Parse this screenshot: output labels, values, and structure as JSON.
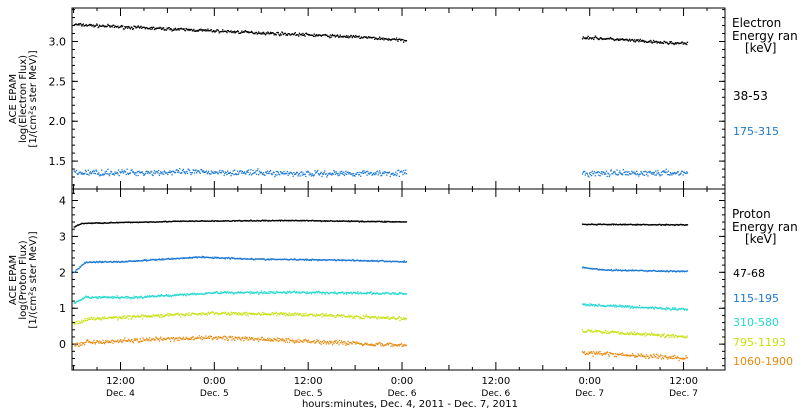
{
  "footer_label": "hours:minutes, Dec.  4, 2011 - Dec.  7, 2011",
  "x_ticks": [
    {
      "time": "12:00",
      "day": "Dec. 4",
      "h": 12
    },
    {
      "time": "0:00",
      "day": "Dec. 5",
      "h": 24
    },
    {
      "time": "12:00",
      "day": "Dec. 5",
      "h": 36
    },
    {
      "time": "0:00",
      "day": "Dec. 6",
      "h": 48
    },
    {
      "time": "12:00",
      "day": "Dec. 6",
      "h": 60
    },
    {
      "time": "0:00",
      "day": "Dec. 7",
      "h": 72
    },
    {
      "time": "12:00",
      "day": "Dec. 7",
      "h": 84
    }
  ],
  "colors": {
    "black": "#000000",
    "blue": "#1a78d2",
    "cyan": "#22d8d0",
    "yellow": "#c8e010",
    "orange": "#e88a10"
  },
  "chart_data": [
    {
      "type": "scatter",
      "panel": "top",
      "ylabel_lines": [
        "ACE EPAM",
        "log(Electron Flux)",
        "[1/(cm²s ster MeV)]"
      ],
      "ylim": [
        1.15,
        3.42
      ],
      "yticks": [
        1.5,
        2.0,
        2.5,
        3.0
      ],
      "ytick_labels": [
        "1.5",
        "2.0",
        "2.5",
        "3.0"
      ],
      "xlim": [
        5.8,
        89.3
      ],
      "legend": {
        "title_lines": [
          "Electron",
          "Energy ran",
          "[keV]"
        ],
        "entries": [
          "38-53",
          "175-315"
        ]
      },
      "series": [
        {
          "name": "38-53",
          "color": "#000000",
          "noise": 0.028,
          "segments": [
            {
              "x": [
                6,
                12,
                24,
                36,
                43,
                48.5
              ],
              "y": [
                3.22,
                3.19,
                3.14,
                3.09,
                3.06,
                3.02
              ]
            },
            {
              "x": [
                71,
                76,
                80,
                84.5
              ],
              "y": [
                3.06,
                3.03,
                3.0,
                2.98
              ]
            }
          ]
        },
        {
          "name": "175-315",
          "color": "#1a78d2",
          "noise": 0.055,
          "segments": [
            {
              "x": [
                6,
                24,
                36,
                48.5
              ],
              "y": [
                1.36,
                1.37,
                1.35,
                1.36
              ]
            },
            {
              "x": [
                71,
                84.5
              ],
              "y": [
                1.35,
                1.36
              ]
            }
          ]
        }
      ]
    },
    {
      "type": "scatter",
      "panel": "bottom",
      "ylabel_lines": [
        "ACE EPAM",
        "log(Proton Flux)",
        "[1/(cm²s ster MeV)]"
      ],
      "ylim": [
        -0.72,
        4.32
      ],
      "yticks": [
        0,
        1,
        2,
        3,
        4
      ],
      "ytick_labels": [
        "0",
        "1",
        "2",
        "3",
        "4"
      ],
      "xlim": [
        5.8,
        89.3
      ],
      "legend": {
        "title_lines": [
          "Proton",
          "Energy ran",
          "[keV]"
        ],
        "entries": [
          "47-68",
          "115-195",
          "310-580",
          "795-1193",
          "1060-1900"
        ]
      },
      "series": [
        {
          "name": "47-68",
          "color": "#000000",
          "noise": 0.02,
          "segments": [
            {
              "x": [
                6,
                7,
                20,
                34,
                48.5
              ],
              "y": [
                3.28,
                3.38,
                3.44,
                3.46,
                3.42
              ]
            },
            {
              "x": [
                71,
                84.5
              ],
              "y": [
                3.35,
                3.34
              ]
            }
          ]
        },
        {
          "name": "115-195",
          "color": "#1a78d2",
          "noise": 0.03,
          "segments": [
            {
              "x": [
                6,
                7.5,
                12,
                22,
                30,
                40,
                48.5
              ],
              "y": [
                2.02,
                2.3,
                2.31,
                2.44,
                2.38,
                2.36,
                2.31
              ]
            },
            {
              "x": [
                71,
                74,
                84.5
              ],
              "y": [
                2.15,
                2.08,
                2.04
              ]
            }
          ]
        },
        {
          "name": "310-580",
          "color": "#22d8d0",
          "noise": 0.05,
          "segments": [
            {
              "x": [
                6,
                7.5,
                14,
                24,
                34,
                48.5
              ],
              "y": [
                1.15,
                1.32,
                1.32,
                1.45,
                1.46,
                1.42
              ]
            },
            {
              "x": [
                71,
                84.5
              ],
              "y": [
                1.12,
                0.98
              ]
            }
          ]
        },
        {
          "name": "795-1193",
          "color": "#c8e010",
          "noise": 0.07,
          "segments": [
            {
              "x": [
                6,
                8,
                24,
                36,
                48.5
              ],
              "y": [
                0.6,
                0.72,
                0.88,
                0.84,
                0.72
              ]
            },
            {
              "x": [
                71,
                84.5
              ],
              "y": [
                0.4,
                0.22
              ]
            }
          ]
        },
        {
          "name": "1060-1900",
          "color": "#e88a10",
          "noise": 0.09,
          "segments": [
            {
              "x": [
                6,
                8,
                24,
                36,
                48.5
              ],
              "y": [
                0.0,
                0.08,
                0.2,
                0.1,
                -0.02
              ]
            },
            {
              "x": [
                71,
                84.5
              ],
              "y": [
                -0.22,
                -0.38
              ]
            }
          ]
        }
      ]
    }
  ]
}
